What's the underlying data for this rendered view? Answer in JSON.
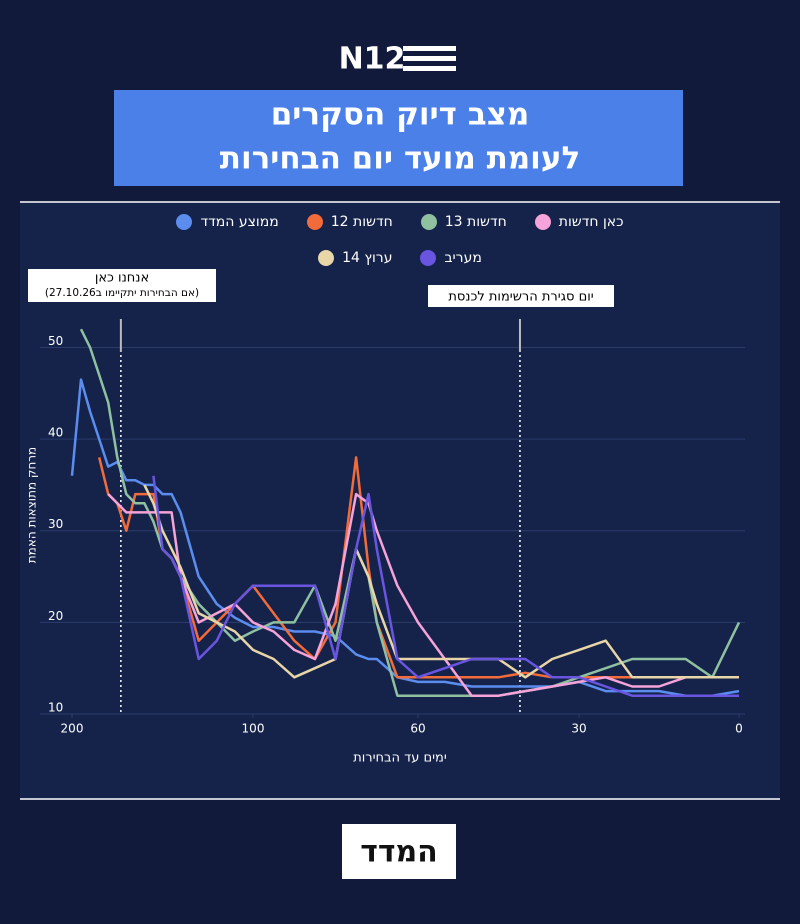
{
  "header": {
    "logo": "N12",
    "title_lines": [
      "מצב דיוק הסקרים",
      "לעומת מועד יום הבחירות"
    ]
  },
  "chart_data": {
    "type": "line",
    "x_label": "ימים עד הבחירות",
    "y_label": "מרחק מתוצאות האמת",
    "x": [
      200,
      195,
      190,
      185,
      180,
      175,
      170,
      165,
      160,
      155,
      150,
      145,
      140,
      130,
      120,
      110,
      100,
      95,
      90,
      85,
      80,
      75,
      72,
      70,
      65,
      60,
      55,
      50,
      45,
      40,
      35,
      30,
      25,
      20,
      15,
      10,
      5,
      0
    ],
    "xlim": [
      200,
      0
    ],
    "xticks": [
      200,
      100,
      60,
      30,
      0
    ],
    "ylim": [
      10,
      53
    ],
    "yticks": [
      10,
      20,
      30,
      40,
      50
    ],
    "grid": true,
    "series": [
      {
        "name": "ממוצע המדד",
        "color": "#5b8def",
        "values": [
          36,
          46.5,
          43,
          40,
          37,
          37.5,
          35.5,
          35.5,
          35,
          35,
          34,
          34,
          32,
          25,
          22,
          20.5,
          19.5,
          19.5,
          19,
          19,
          18.5,
          16.5,
          16,
          16,
          14,
          13.5,
          13.5,
          13,
          13,
          13,
          13,
          13.5,
          12.5,
          12.5,
          12.5,
          12,
          12,
          12.5
        ]
      },
      {
        "name": "חדשות 12",
        "color": "#f26b3a",
        "values": [
          null,
          null,
          null,
          38,
          34,
          33,
          30,
          34,
          34,
          34,
          28,
          27,
          25,
          18,
          20,
          22,
          24,
          21,
          18,
          16,
          20,
          38,
          26,
          20,
          14,
          14,
          14,
          14,
          14,
          14.5,
          14,
          14,
          14,
          14,
          14,
          14,
          14,
          14
        ]
      },
      {
        "name": "חדשות 13",
        "color": "#8fc1a0",
        "values": [
          null,
          52,
          50,
          47,
          44,
          38,
          34,
          33,
          33,
          31,
          28,
          27,
          25,
          22,
          20,
          18,
          19,
          20,
          20,
          24,
          18,
          28,
          25,
          20,
          12,
          12,
          12,
          12,
          12,
          12.5,
          13,
          14,
          15,
          16,
          16,
          16,
          14,
          20
        ]
      },
      {
        "name": "כאן חדשות",
        "color": "#f5a3d8",
        "values": [
          null,
          null,
          null,
          null,
          34,
          33,
          32,
          32,
          32,
          32,
          32,
          32,
          25,
          20,
          21,
          22,
          20,
          19,
          17,
          16,
          22,
          34,
          33,
          30,
          24,
          20,
          16,
          12,
          12,
          12.5,
          13,
          13.5,
          14,
          13,
          13,
          14,
          14,
          14
        ]
      },
      {
        "name": "ערוץ 14",
        "color": "#e8d5a8",
        "values": [
          null,
          null,
          null,
          null,
          null,
          null,
          null,
          null,
          35,
          33,
          30,
          28,
          26,
          21,
          20,
          19,
          17,
          16,
          14,
          15,
          16,
          28,
          25,
          22,
          16,
          16,
          16,
          16,
          16,
          14,
          16,
          17,
          18,
          14,
          14,
          14,
          14,
          14
        ]
      },
      {
        "name": "מעריב",
        "color": "#6a55e0",
        "values": [
          null,
          null,
          null,
          null,
          null,
          null,
          null,
          null,
          null,
          36,
          28,
          27,
          25,
          16,
          18,
          22,
          24,
          24,
          24,
          24,
          16,
          28,
          34,
          28,
          16,
          14,
          15,
          16,
          16,
          16,
          14,
          14,
          13,
          12,
          12,
          12,
          12,
          12
        ]
      }
    ],
    "annotations": [
      {
        "x": 173,
        "text": "אנחנו כאן",
        "subtext": "(אם הבחירות יתקיימו ב27.10.26)"
      },
      {
        "x": 41,
        "text": "יום סגירת הרשימות לכנסת"
      }
    ]
  },
  "footer": {
    "logo": "המדד"
  }
}
